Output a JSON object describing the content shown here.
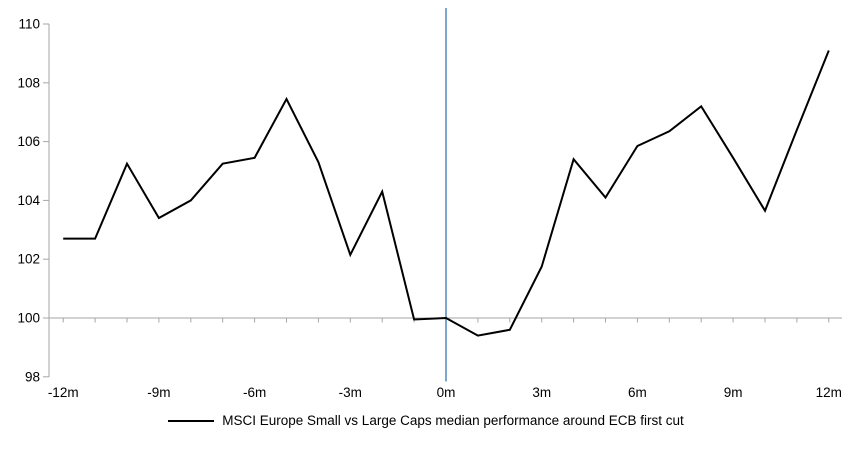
{
  "legend": {
    "label": "MSCI Europe Small vs Large Caps median performance around ECB first cut"
  },
  "colors": {
    "series": "#000000",
    "event_line": "#7ea6ce",
    "axis": "#a6a6a6",
    "text": "#000000"
  },
  "chart_data": {
    "type": "line",
    "title": "",
    "xlabel": "",
    "ylabel": "",
    "grid": false,
    "legend_position": "bottom",
    "ylim": [
      98,
      110
    ],
    "xlim": [
      -12,
      12
    ],
    "baseline_value": 100,
    "event_line_x": 0,
    "y_ticks": [
      98,
      100,
      102,
      104,
      106,
      108,
      110
    ],
    "x_tick_values": [
      -12,
      -9,
      -6,
      -3,
      0,
      3,
      6,
      9,
      12
    ],
    "x_tick_labels": [
      "-12m",
      "-9m",
      "-6m",
      "-3m",
      "0m",
      "3m",
      "6m",
      "9m",
      "12m"
    ],
    "x_minor_tick_step": 1,
    "series": [
      {
        "name": "MSCI Europe Small vs Large Caps median performance around ECB first cut",
        "x": [
          -12,
          -11,
          -10,
          -9,
          -8,
          -7,
          -6,
          -5,
          -4,
          -3,
          -2,
          -1,
          0,
          1,
          2,
          3,
          4,
          5,
          6,
          7,
          8,
          9,
          10,
          11,
          12
        ],
        "values": [
          102.7,
          102.7,
          105.25,
          103.4,
          104.0,
          105.25,
          105.45,
          107.45,
          105.3,
          102.15,
          104.3,
          99.95,
          100.0,
          99.4,
          99.6,
          101.75,
          105.4,
          104.1,
          105.85,
          106.35,
          107.2,
          105.45,
          103.65,
          106.4,
          109.1
        ]
      }
    ]
  }
}
